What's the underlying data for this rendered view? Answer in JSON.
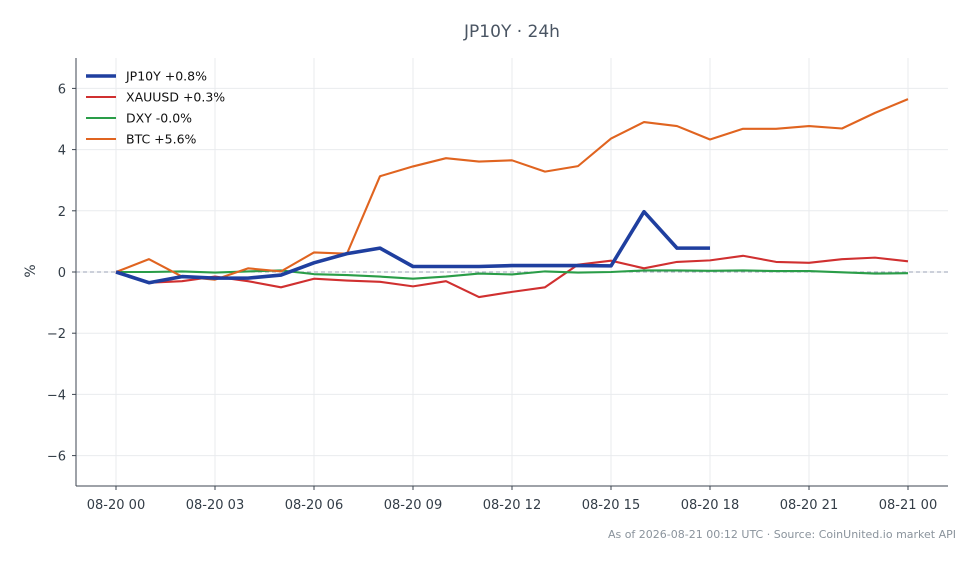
{
  "chart_data": {
    "type": "line",
    "title": "JP10Y · 24h",
    "xlabel": "",
    "ylabel": "%",
    "ylim": [
      -7,
      7
    ],
    "yticks": [
      -6,
      -4,
      -2,
      0,
      2,
      4,
      6
    ],
    "ytick_labels": [
      "−6",
      "−4",
      "−2",
      "0",
      "2",
      "4",
      "6"
    ],
    "xticks": [
      0,
      3,
      6,
      9,
      12,
      15,
      18,
      21,
      24
    ],
    "xtick_labels": [
      "08-20 00",
      "08-20 03",
      "08-20 06",
      "08-20 09",
      "08-20 12",
      "08-20 15",
      "08-20 18",
      "08-20 21",
      "08-21 00"
    ],
    "x_unit": "hours from 08-20 00:00",
    "grid": true,
    "zero_line": true,
    "legend_position": "top-left",
    "series": [
      {
        "name": "JP10Y +0.8%",
        "color": "#1f3f9f",
        "line_width": "thick",
        "x": [
          0,
          1,
          2,
          3,
          4,
          5,
          6,
          7,
          8,
          9,
          10,
          11,
          12,
          13,
          14,
          15,
          16,
          17,
          18
        ],
        "values": [
          0.0,
          -0.35,
          -0.15,
          -0.2,
          -0.2,
          -0.1,
          0.3,
          0.6,
          0.78,
          0.18,
          0.18,
          0.18,
          0.21,
          0.21,
          0.21,
          0.2,
          1.97,
          0.78,
          0.78
        ]
      },
      {
        "name": "XAUUSD +0.3%",
        "color": "#d03030",
        "line_width": "normal",
        "x": [
          0,
          1,
          2,
          3,
          4,
          5,
          6,
          7,
          8,
          9,
          10,
          11,
          12,
          13,
          14,
          15,
          16,
          17,
          18,
          19,
          20,
          21,
          22,
          23,
          24
        ],
        "values": [
          0.0,
          -0.35,
          -0.3,
          -0.15,
          -0.3,
          -0.5,
          -0.22,
          -0.28,
          -0.32,
          -0.47,
          -0.3,
          -0.82,
          -0.65,
          -0.5,
          0.24,
          0.37,
          0.12,
          0.33,
          0.38,
          0.53,
          0.33,
          0.3,
          0.42,
          0.47,
          0.35
        ]
      },
      {
        "name": "DXY -0.0%",
        "color": "#2a9d48",
        "line_width": "normal",
        "x": [
          0,
          1,
          2,
          3,
          4,
          5,
          6,
          7,
          8,
          9,
          10,
          11,
          12,
          13,
          14,
          15,
          16,
          17,
          18,
          19,
          20,
          21,
          22,
          23,
          24
        ],
        "values": [
          0.0,
          0.0,
          0.02,
          -0.02,
          0.02,
          0.05,
          -0.07,
          -0.1,
          -0.15,
          -0.22,
          -0.15,
          -0.05,
          -0.08,
          0.02,
          -0.02,
          0.0,
          0.05,
          0.05,
          0.04,
          0.05,
          0.03,
          0.03,
          -0.01,
          -0.05,
          -0.04
        ]
      },
      {
        "name": "BTC +5.6%",
        "color": "#e06420",
        "line_width": "normal",
        "x": [
          0,
          1,
          2,
          3,
          4,
          5,
          6,
          7,
          8,
          9,
          10,
          11,
          12,
          13,
          14,
          15,
          16,
          17,
          18,
          19,
          20,
          21,
          22,
          23,
          24
        ],
        "values": [
          0.0,
          0.42,
          -0.15,
          -0.25,
          0.12,
          0.02,
          0.64,
          0.6,
          3.13,
          3.45,
          3.72,
          3.61,
          3.65,
          3.28,
          3.46,
          4.36,
          4.9,
          4.77,
          4.33,
          4.68,
          4.68,
          4.77,
          4.69,
          5.2,
          5.65
        ]
      }
    ]
  },
  "footer": "As of 2026-08-21 00:12 UTC · Source: CoinUnited.io market API"
}
